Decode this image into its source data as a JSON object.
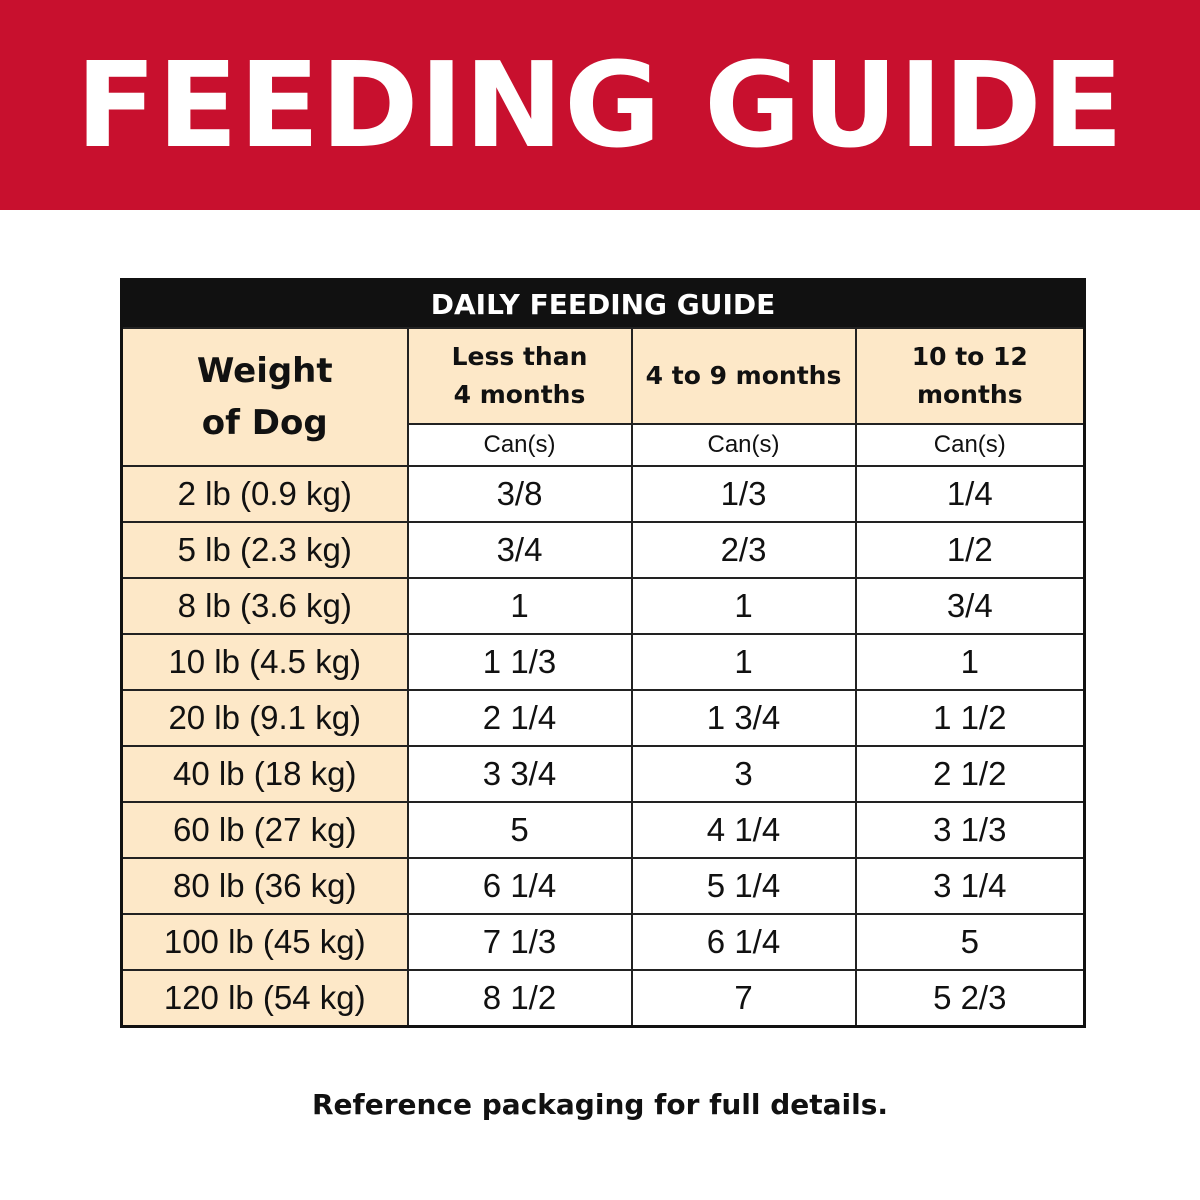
{
  "header": {
    "title": "FEEDING GUIDE"
  },
  "table": {
    "title": "DAILY FEEDING GUIDE",
    "columns": [
      "Weight of Dog",
      "Less than 4 months",
      "4 to 9 months",
      "10 to 12 months"
    ],
    "units": [
      "Can(s)",
      "Can(s)",
      "Can(s)"
    ],
    "rows": [
      [
        "2 lb (0.9 kg)",
        "3/8",
        "1/3",
        "1/4"
      ],
      [
        "5 lb (2.3 kg)",
        "3/4",
        "2/3",
        "1/2"
      ],
      [
        "8 lb (3.6 kg)",
        "1",
        "1",
        "3/4"
      ],
      [
        "10 lb (4.5 kg)",
        "1 1/3",
        "1",
        "1"
      ],
      [
        "20 lb (9.1 kg)",
        "2 1/4",
        "1 3/4",
        "1 1/2"
      ],
      [
        "40 lb (18 kg)",
        "3 3/4",
        "3",
        "2 1/2"
      ],
      [
        "60 lb (27 kg)",
        "5",
        "4 1/4",
        "3 1/3"
      ],
      [
        "80 lb (36 kg)",
        "6 1/4",
        "5 1/4",
        "3 1/4"
      ],
      [
        "100 lb (45 kg)",
        "7 1/3",
        "6 1/4",
        "5"
      ],
      [
        "120 lb (54 kg)",
        "8 1/2",
        "7",
        "5 2/3"
      ]
    ]
  },
  "footer": "Reference packaging for full details."
}
